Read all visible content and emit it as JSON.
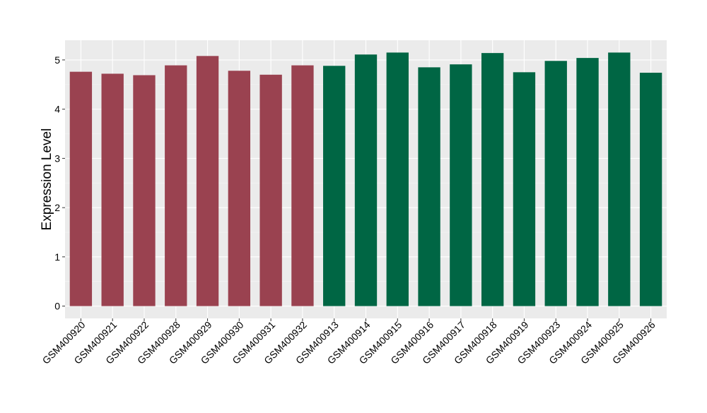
{
  "chart_data": {
    "type": "bar",
    "ylabel": "Expression Level",
    "xlabel": "",
    "ylim": [
      -0.25,
      5.4
    ],
    "yticks": [
      0,
      1,
      2,
      3,
      4,
      5
    ],
    "grid": true,
    "panel_background": "#ebebeb",
    "categories": [
      "GSM400920",
      "GSM400921",
      "GSM400922",
      "GSM400928",
      "GSM400929",
      "GSM400930",
      "GSM400931",
      "GSM400932",
      "GSM400913",
      "GSM400914",
      "GSM400915",
      "GSM400916",
      "GSM400917",
      "GSM400918",
      "GSM400919",
      "GSM400923",
      "GSM400924",
      "GSM400925",
      "GSM400926"
    ],
    "values": [
      4.76,
      4.72,
      4.69,
      4.89,
      5.08,
      4.78,
      4.7,
      4.89,
      4.88,
      5.11,
      5.15,
      4.85,
      4.91,
      5.14,
      4.75,
      4.98,
      5.04,
      5.15,
      4.74
    ],
    "colors": [
      "#9a4250",
      "#9a4250",
      "#9a4250",
      "#9a4250",
      "#9a4250",
      "#9a4250",
      "#9a4250",
      "#9a4250",
      "#006644",
      "#006644",
      "#006644",
      "#006644",
      "#006644",
      "#006644",
      "#006644",
      "#006644",
      "#006644",
      "#006644",
      "#006644"
    ]
  }
}
